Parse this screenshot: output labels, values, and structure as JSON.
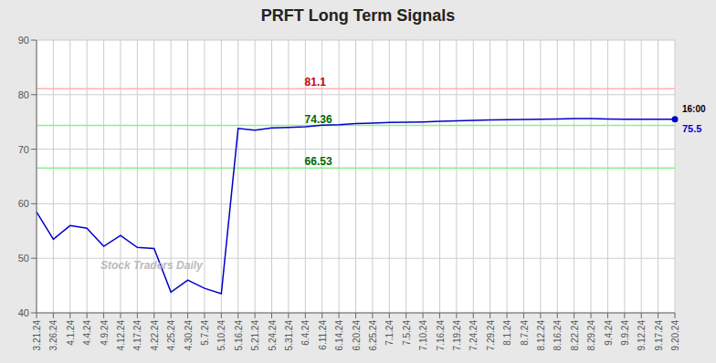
{
  "chart_data": {
    "type": "line",
    "title": "PRFT Long Term Signals",
    "background_color": "#e8e8e8",
    "plot_background_color": "#ffffff",
    "categories": [
      "3.21.24",
      "3.26.24",
      "4.1.24",
      "4.4.24",
      "4.9.24",
      "4.12.24",
      "4.17.24",
      "4.22.24",
      "4.25.24",
      "4.30.24",
      "5.7.24",
      "5.10.24",
      "5.16.24",
      "5.21.24",
      "5.24.24",
      "5.31.24",
      "6.4.24",
      "6.11.24",
      "6.14.24",
      "6.20.24",
      "6.25.24",
      "7.1.24",
      "7.5.24",
      "7.10.24",
      "7.16.24",
      "7.19.24",
      "7.24.24",
      "7.29.24",
      "8.1.24",
      "8.7.24",
      "8.12.24",
      "8.16.24",
      "8.22.24",
      "8.29.24",
      "9.4.24",
      "9.9.24",
      "9.12.24",
      "9.17.24",
      "9.20.24"
    ],
    "values": [
      58.5,
      53.5,
      56.0,
      55.5,
      52.2,
      54.2,
      52.0,
      51.8,
      43.8,
      46.0,
      44.5,
      43.5,
      73.8,
      73.5,
      73.9,
      74.0,
      74.1,
      74.4,
      74.5,
      74.7,
      74.8,
      74.9,
      74.95,
      75.0,
      75.1,
      75.2,
      75.3,
      75.35,
      75.4,
      75.45,
      75.5,
      75.55,
      75.6,
      75.6,
      75.55,
      75.5,
      75.5,
      75.5,
      75.5
    ],
    "color": "#0000cc",
    "ylim": [
      40,
      90
    ],
    "yticks": [
      40,
      50,
      60,
      70,
      80,
      90
    ],
    "grid": true,
    "reference_lines": [
      {
        "value": 81.1,
        "label": "81.1",
        "color": "#ffb3b3",
        "label_color": "#cc0000"
      },
      {
        "value": 74.36,
        "label": "74.36",
        "color": "#90ee90",
        "label_color": "#006600"
      },
      {
        "value": 66.53,
        "label": "66.53",
        "color": "#90ee90",
        "label_color": "#006600"
      }
    ],
    "last_point": {
      "label": "16:00",
      "value_label": "75.5",
      "color": "#0000cc"
    },
    "watermark": {
      "text": "Stock Traders Daily",
      "color": "#bbbbbb"
    }
  }
}
